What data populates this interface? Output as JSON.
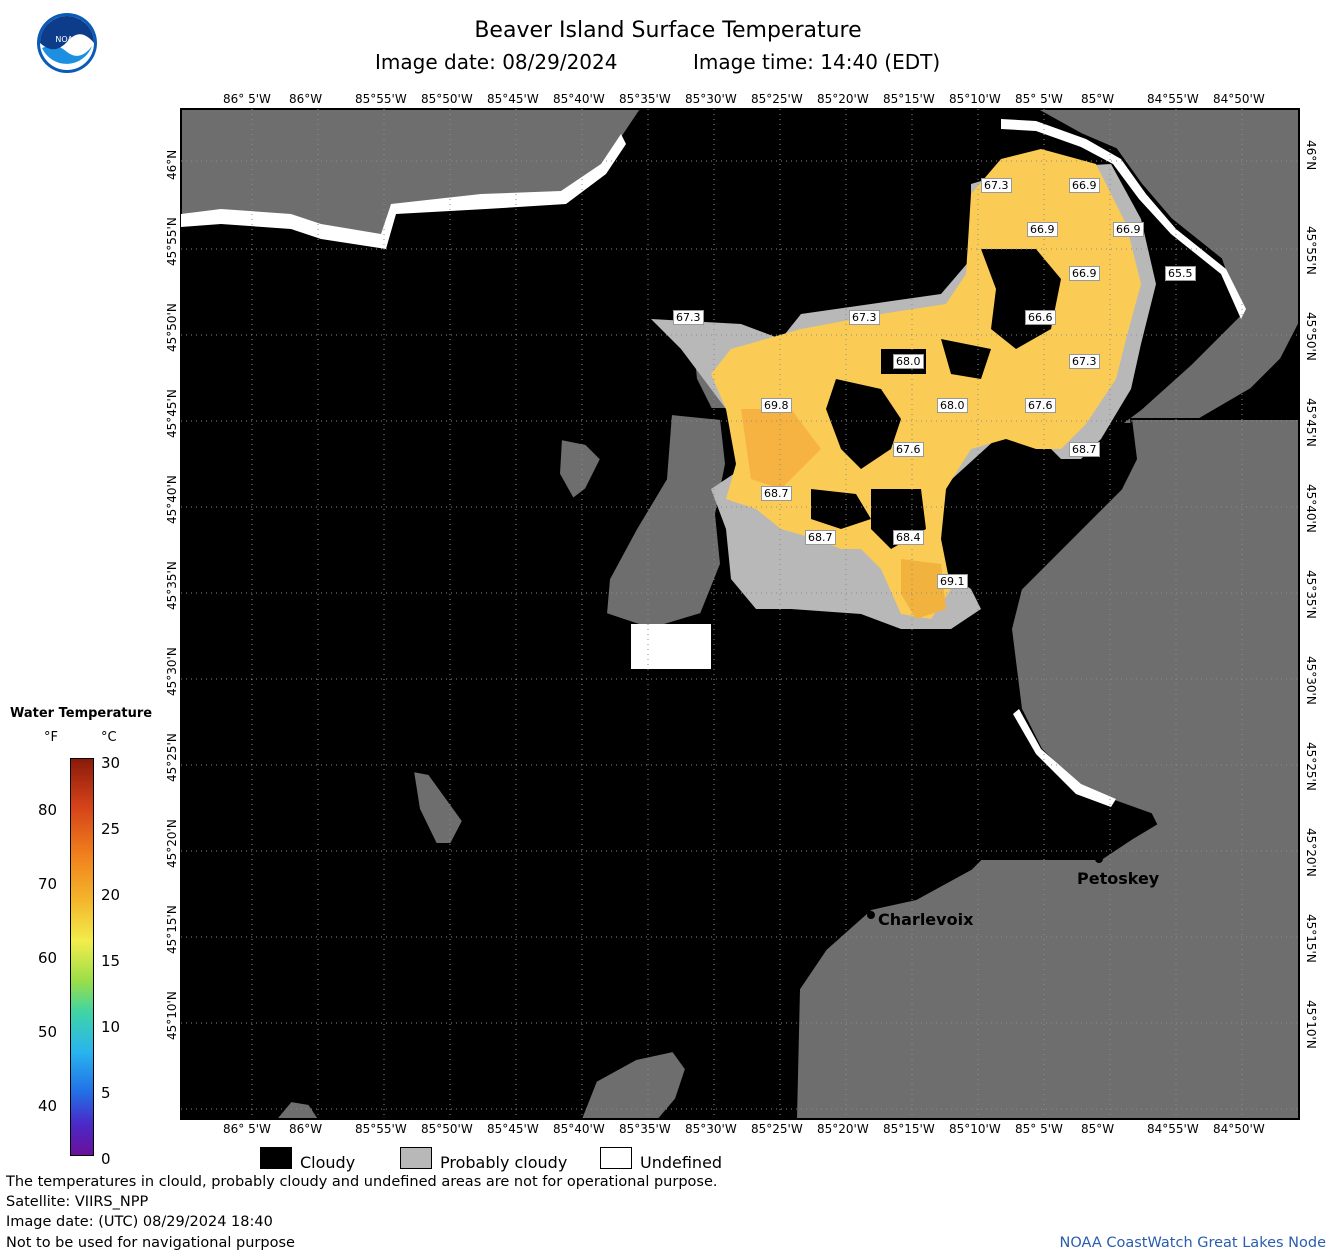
{
  "header": {
    "title": "Beaver Island Surface Temperature",
    "image_date": "Image date: 08/29/2024",
    "image_time": "Image time: 14:40 (EDT)"
  },
  "logo": {
    "text": "NOAA"
  },
  "map": {
    "lon_ticks": [
      "86° 5'W",
      "86°W",
      "85°55'W",
      "85°50'W",
      "85°45'W",
      "85°40'W",
      "85°35'W",
      "85°30'W",
      "85°25'W",
      "85°20'W",
      "85°15'W",
      "85°10'W",
      "85° 5'W",
      "85°W",
      "84°55'W",
      "84°50'W"
    ],
    "lat_ticks": [
      "46°N",
      "45°55'N",
      "45°50'N",
      "45°45'N",
      "45°40'N",
      "45°35'N",
      "45°30'N",
      "45°25'N",
      "45°20'N",
      "45°15'N",
      "45°10'N"
    ],
    "cities": {
      "petoskey": "Petoskey",
      "charlevoix": "Charlevoix"
    },
    "temp_labels": [
      "67.3",
      "66.9",
      "66.9",
      "66.9",
      "66.9",
      "65.5",
      "67.3",
      "67.3",
      "66.6",
      "68.0",
      "67.3",
      "69.8",
      "68.0",
      "67.6",
      "67.6",
      "68.7",
      "68.7",
      "68.7",
      "68.4",
      "69.1"
    ],
    "colors": {
      "water_cloud": "#000000",
      "land": "#6e6e6e",
      "probably_cloudy": "#b8b8b8",
      "undefined": "#ffffff",
      "warm_water": "#fbcc55"
    }
  },
  "legend": {
    "title": "Water Temperature",
    "unit_f": "°F",
    "unit_c": "°C",
    "f_ticks": [
      "80",
      "70",
      "60",
      "50",
      "40"
    ],
    "c_ticks": [
      "30",
      "25",
      "20",
      "15",
      "10",
      "5",
      "0"
    ]
  },
  "key": {
    "cloudy": "Cloudy",
    "probably_cloudy": "Probably cloudy",
    "undefined": "Undefined"
  },
  "footer": {
    "note": "The temperatures in clould, probably cloudy and undefined areas are not for operational purpose.",
    "satellite": "Satellite: VIIRS_NPP",
    "utc": "Image date: (UTC) 08/29/2024  18:40",
    "nav": "Not to be used for navigational purpose",
    "credit": "NOAA CoastWatch Great Lakes Node"
  }
}
